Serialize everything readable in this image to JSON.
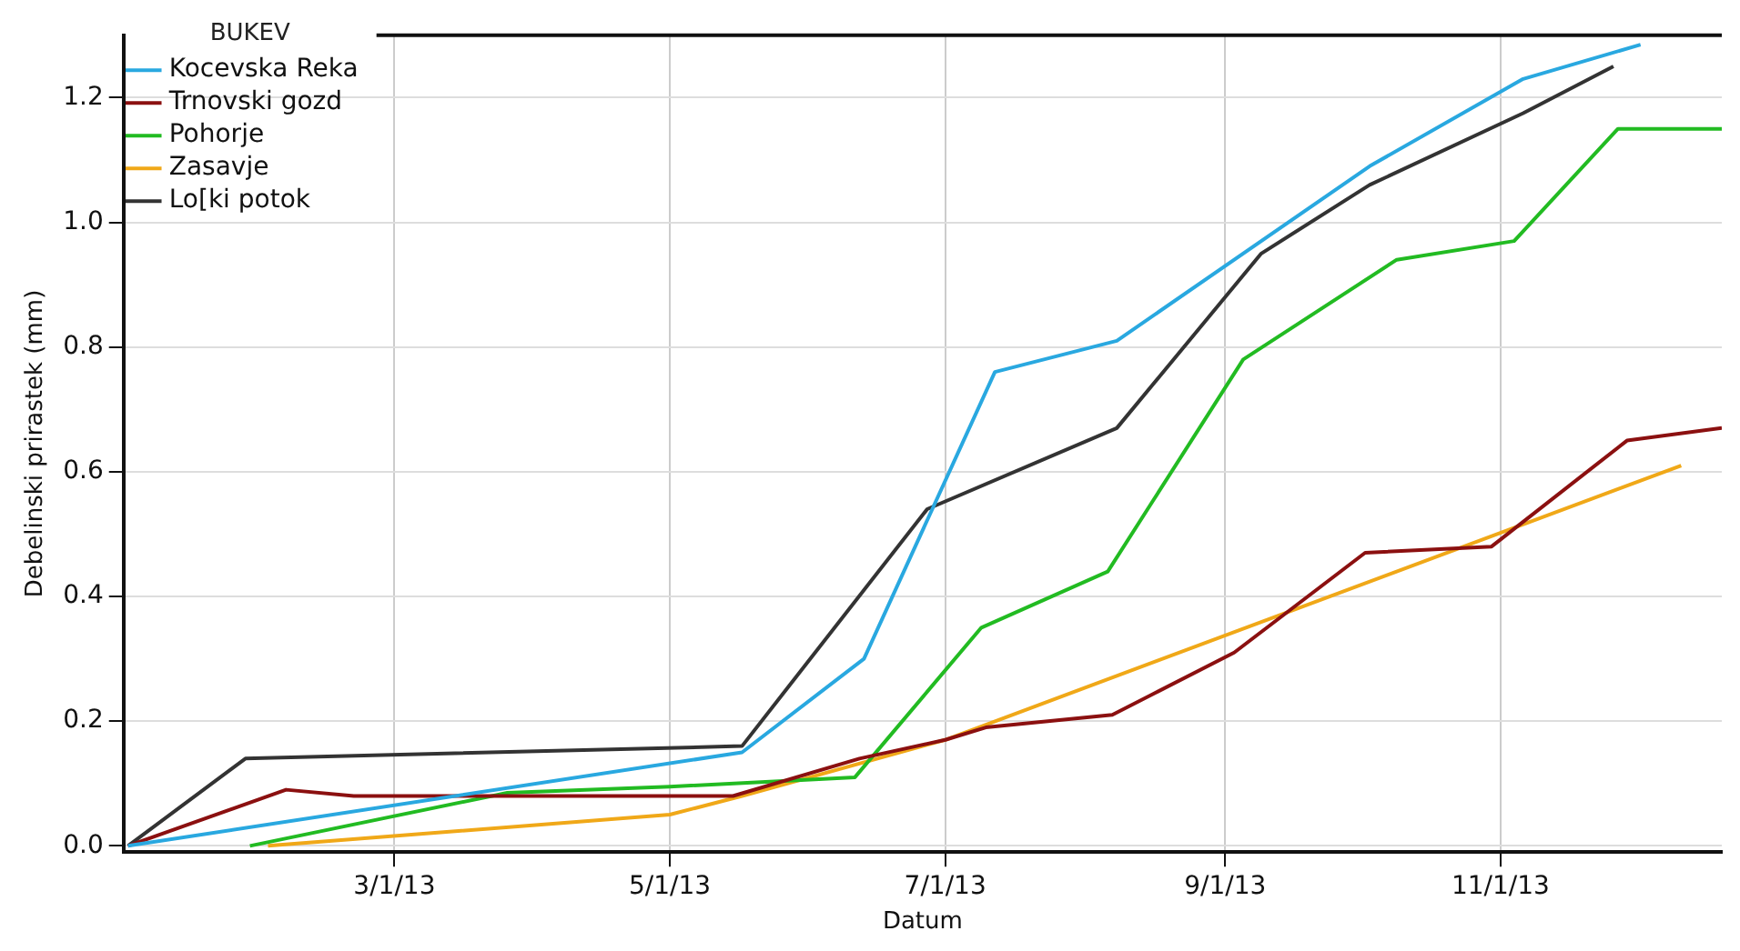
{
  "chart_data": {
    "type": "line",
    "xlabel": "Datum",
    "ylabel": "Debelinski prirastek (mm)",
    "legend_title": "BUKEV",
    "legend": "top left",
    "grid": true,
    "line_style": "solid",
    "marker": "none",
    "xlim": [
      "2012-12-31",
      "2013-12-20"
    ],
    "xticks": [
      {
        "value": "2013-03-01",
        "label": "3/1/13"
      },
      {
        "value": "2013-05-01",
        "label": "5/1/13"
      },
      {
        "value": "2013-07-01",
        "label": "7/1/13"
      },
      {
        "value": "2013-09-01",
        "label": "9/1/13"
      },
      {
        "value": "2013-11-01",
        "label": "11/1/13"
      }
    ],
    "ylim": [
      -0.01,
      1.3
    ],
    "yticks": [
      {
        "value": 0,
        "label": "0.0"
      },
      {
        "value": 0.2,
        "label": "0.2"
      },
      {
        "value": 0.4,
        "label": "0.4"
      },
      {
        "value": 0.6,
        "label": "0.6"
      },
      {
        "value": 0.8,
        "label": "0.8"
      },
      {
        "value": 1,
        "label": "1.0"
      },
      {
        "value": 1.2,
        "label": "1.2"
      }
    ],
    "series": [
      {
        "name": "Kocevska Reka",
        "color": "#29a8e0",
        "x": [
          "2013-01-01",
          "2013-05-17",
          "2013-06-13",
          "2013-07-12",
          "2013-08-08",
          "2013-10-03",
          "2013-11-06",
          "2013-12-02"
        ],
        "values": [
          0,
          0.15,
          0.3,
          0.76,
          0.81,
          1.09,
          1.23,
          1.285
        ]
      },
      {
        "name": "Trnovski gozd",
        "color": "#8b1010",
        "x": [
          "2013-01-01",
          "2013-02-05",
          "2013-02-20",
          "2013-05-15",
          "2013-06-12",
          "2013-07-01",
          "2013-07-10",
          "2013-08-07",
          "2013-09-03",
          "2013-10-02",
          "2013-10-30",
          "2013-11-29",
          "2013-12-20"
        ],
        "values": [
          0,
          0.09,
          0.08,
          0.08,
          0.14,
          0.17,
          0.19,
          0.21,
          0.31,
          0.47,
          0.48,
          0.65,
          0.67
        ]
      },
      {
        "name": "Pohorje",
        "color": "#22bb22",
        "x": [
          "2013-01-28",
          "2013-03-26",
          "2013-05-01",
          "2013-06-11",
          "2013-07-09",
          "2013-08-06",
          "2013-09-05",
          "2013-10-09",
          "2013-11-04",
          "2013-11-27",
          "2013-12-20"
        ],
        "values": [
          0,
          0.085,
          0.095,
          0.11,
          0.35,
          0.44,
          0.78,
          0.94,
          0.97,
          1.15,
          1.15
        ]
      },
      {
        "name": "Zasavje",
        "color": "#f0a818",
        "x": [
          "2013-02-01",
          "2013-05-01",
          "2013-05-17",
          "2013-07-01",
          "2013-12-11"
        ],
        "values": [
          0,
          0.05,
          0.08,
          0.17,
          0.61
        ]
      },
      {
        "name": "Lo[ki potok",
        "color": "#333333",
        "x": [
          "2013-01-01",
          "2013-01-27",
          "2013-05-17",
          "2013-06-27",
          "2013-08-08",
          "2013-09-09",
          "2013-10-03",
          "2013-11-06",
          "2013-11-26"
        ],
        "values": [
          0,
          0.14,
          0.16,
          0.54,
          0.67,
          0.95,
          1.06,
          1.175,
          1.25
        ]
      }
    ]
  }
}
